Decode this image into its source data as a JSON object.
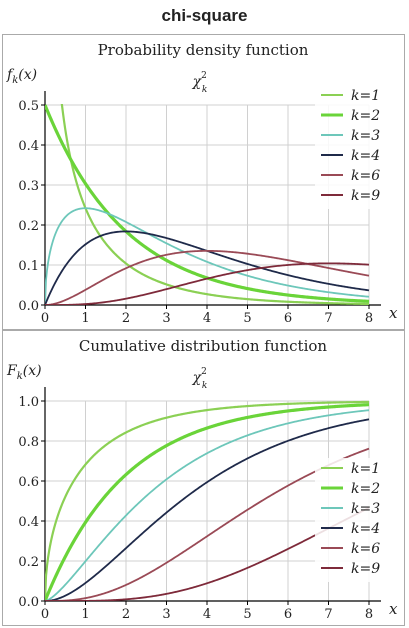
{
  "page_title": "chi-square",
  "colors": {
    "k1": "#8bd054",
    "k2": "#6ad439",
    "k3": "#6dc7ba",
    "k4": "#1f2a4a",
    "k6": "#9a4a56",
    "k9": "#7e2a3a",
    "grid": "#d0d0d0",
    "axis": "#000000"
  },
  "chart_data": [
    {
      "type": "line",
      "title": "Probability density function",
      "subtitle": "χ²_k",
      "ylabel": "f_k(x)",
      "xlabel": "x",
      "xlim": [
        0,
        8
      ],
      "ylim": [
        0,
        0.5
      ],
      "xticks": [
        "0",
        "1",
        "2",
        "3",
        "4",
        "5",
        "6",
        "7",
        "8"
      ],
      "yticks": [
        "0.0",
        "0.1",
        "0.2",
        "0.3",
        "0.4",
        "0.5"
      ],
      "legend_position": "top-right",
      "series": [
        {
          "name": "k=1",
          "k": 1,
          "values_x": [
            0.2,
            0.5,
            1,
            2,
            3,
            4,
            5,
            6,
            7,
            8
          ],
          "values_y": [
            0.5,
            0.44,
            0.242,
            0.104,
            0.051,
            0.027,
            0.015,
            0.008,
            0.005,
            0.003
          ]
        },
        {
          "name": "k=2",
          "k": 2,
          "values_x": [
            0,
            1,
            2,
            3,
            4,
            5,
            6,
            7,
            8
          ],
          "values_y": [
            0.5,
            0.303,
            0.184,
            0.112,
            0.068,
            0.041,
            0.025,
            0.015,
            0.009
          ]
        },
        {
          "name": "k=3",
          "k": 3,
          "values_x": [
            0,
            1,
            2,
            3,
            4,
            5,
            6,
            7,
            8
          ],
          "values_y": [
            0,
            0.242,
            0.208,
            0.154,
            0.108,
            0.073,
            0.048,
            0.032,
            0.021
          ]
        },
        {
          "name": "k=4",
          "k": 4,
          "values_x": [
            0,
            1,
            2,
            3,
            4,
            5,
            6,
            7,
            8
          ],
          "values_y": [
            0,
            0.152,
            0.184,
            0.167,
            0.135,
            0.103,
            0.075,
            0.053,
            0.037
          ]
        },
        {
          "name": "k=6",
          "k": 6,
          "values_x": [
            0,
            1,
            2,
            3,
            4,
            5,
            6,
            7,
            8
          ],
          "values_y": [
            0,
            0.038,
            0.092,
            0.126,
            0.135,
            0.128,
            0.112,
            0.092,
            0.073
          ]
        },
        {
          "name": "k=9",
          "k": 9,
          "values_x": [
            0,
            1,
            2,
            3,
            4,
            5,
            6,
            7,
            8
          ],
          "values_y": [
            0,
            0.002,
            0.013,
            0.034,
            0.058,
            0.079,
            0.094,
            0.1,
            0.1
          ]
        }
      ]
    },
    {
      "type": "line",
      "title": "Cumulative distribution function",
      "subtitle": "χ²_k",
      "ylabel": "F_k(x)",
      "xlabel": "x",
      "xlim": [
        0,
        8
      ],
      "ylim": [
        0,
        1.0
      ],
      "xticks": [
        "0",
        "1",
        "2",
        "3",
        "4",
        "5",
        "6",
        "7",
        "8"
      ],
      "yticks": [
        "0.0",
        "0.2",
        "0.4",
        "0.6",
        "0.8",
        "1.0"
      ],
      "legend_position": "bottom-right",
      "series": [
        {
          "name": "k=1",
          "k": 1,
          "values_x": [
            0,
            1,
            2,
            3,
            4,
            5,
            6,
            7,
            8
          ],
          "values_y": [
            0,
            0.683,
            0.843,
            0.917,
            0.954,
            0.975,
            0.986,
            0.992,
            0.995
          ]
        },
        {
          "name": "k=2",
          "k": 2,
          "values_x": [
            0,
            1,
            2,
            3,
            4,
            5,
            6,
            7,
            8
          ],
          "values_y": [
            0,
            0.393,
            0.632,
            0.777,
            0.865,
            0.918,
            0.95,
            0.97,
            0.982
          ]
        },
        {
          "name": "k=3",
          "k": 3,
          "values_x": [
            0,
            1,
            2,
            3,
            4,
            5,
            6,
            7,
            8
          ],
          "values_y": [
            0,
            0.199,
            0.428,
            0.608,
            0.739,
            0.828,
            0.888,
            0.928,
            0.954
          ]
        },
        {
          "name": "k=4",
          "k": 4,
          "values_x": [
            0,
            1,
            2,
            3,
            4,
            5,
            6,
            7,
            8
          ],
          "values_y": [
            0,
            0.09,
            0.264,
            0.442,
            0.594,
            0.713,
            0.801,
            0.864,
            0.908
          ]
        },
        {
          "name": "k=6",
          "k": 6,
          "values_x": [
            0,
            1,
            2,
            3,
            4,
            5,
            6,
            7,
            8
          ],
          "values_y": [
            0,
            0.014,
            0.08,
            0.191,
            0.323,
            0.456,
            0.577,
            0.679,
            0.762
          ]
        },
        {
          "name": "k=9",
          "k": 9,
          "values_x": [
            0,
            1,
            2,
            3,
            4,
            5,
            6,
            7,
            8
          ],
          "values_y": [
            0,
            0.0002,
            0.0053,
            0.0357,
            0.1109,
            0.2234,
            0.3567,
            0.4634,
            0.5665
          ]
        }
      ]
    }
  ]
}
